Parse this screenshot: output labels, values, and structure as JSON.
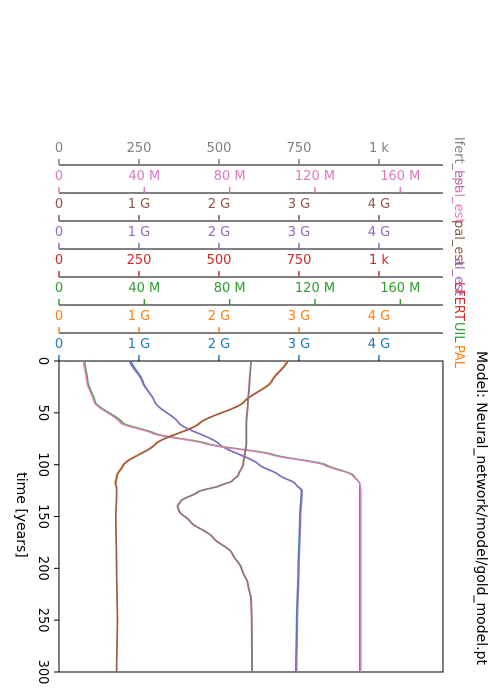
{
  "chart_data": {
    "type": "line",
    "orientation": "vertical-time",
    "title": "Model: Neural_network/model/gold_model.pt",
    "ylabel": "time [years]",
    "ylim": [
      0,
      300
    ],
    "y_ticks": [
      "0",
      "50",
      "100",
      "150",
      "200",
      "250",
      "300"
    ],
    "axes": [
      {
        "name": "lfert_est",
        "color": "#7f7f7f",
        "max": 1200,
        "ticks": [
          "0",
          "250",
          "500",
          "750",
          "1 k"
        ]
      },
      {
        "name": "Lpal_est",
        "color": "#e377c2",
        "max": 180000000,
        "ticks": [
          "0",
          "40 M",
          "80 M",
          "120 M",
          "160 M"
        ]
      },
      {
        "name": "pal_est",
        "color": "#8c564b",
        "max": 4800000000,
        "ticks": [
          "0",
          "1 G",
          "2 G",
          "3 G",
          "4 G"
        ]
      },
      {
        "name": "al_est",
        "color": "#9467bd",
        "max": 4800000000,
        "ticks": [
          "0",
          "1 G",
          "2 G",
          "3 G",
          "4 G"
        ]
      },
      {
        "name": "LFERT",
        "color": "#d62728",
        "max": 1200,
        "ticks": [
          "0",
          "250",
          "500",
          "750",
          "1 k"
        ]
      },
      {
        "name": "UIL",
        "color": "#2ca02c",
        "max": 180000000,
        "ticks": [
          "0",
          "40 M",
          "80 M",
          "120 M",
          "160 M"
        ]
      },
      {
        "name": "PAL",
        "color": "#ff7f0e",
        "max": 4800000000,
        "ticks": [
          "0",
          "1 G",
          "2 G",
          "3 G",
          "4 G"
        ]
      },
      {
        "name": "AL",
        "color": "#1f77b4",
        "max": 4800000000,
        "ticks": [
          "0",
          "1 G",
          "2 G",
          "3 G",
          "4 G"
        ]
      }
    ],
    "series": [
      {
        "name": "AL",
        "color": "#1f77b4",
        "max": 4800000000,
        "t": [
          0,
          20,
          40,
          60,
          80,
          100,
          110,
          118,
          125,
          150,
          200,
          250,
          300
        ],
        "v": [
          900000000.0,
          1050000000.0,
          1200000000.0,
          1500000000.0,
          2000000000.0,
          2500000000.0,
          2750000000.0,
          2950000000.0,
          3030000000.0,
          3010000000.0,
          2990000000.0,
          2970000000.0,
          2960000000.0
        ]
      },
      {
        "name": "al_est",
        "color": "#9467bd",
        "max": 4800000000,
        "t": [
          0,
          20,
          40,
          60,
          80,
          100,
          110,
          118,
          125,
          150,
          200,
          250,
          300
        ],
        "v": [
          880000000.0,
          1040000000.0,
          1200000000.0,
          1500000000.0,
          2000000000.0,
          2500000000.0,
          2750000000.0,
          2950000000.0,
          3040000000.0,
          3020000000.0,
          3000000000.0,
          2980000000.0,
          2970000000.0
        ]
      },
      {
        "name": "UIL",
        "color": "#2ca02c",
        "max": 180000000,
        "t": [
          0,
          20,
          40,
          60,
          70,
          80,
          90,
          100,
          110,
          118,
          125,
          150,
          200,
          250,
          300
        ],
        "v": [
          12000000,
          13500000,
          17000000,
          30000000,
          45000000,
          70000000,
          100000000,
          125000000,
          138000000,
          141000000,
          141000000,
          141000000,
          141000000,
          141000000,
          141000000
        ]
      },
      {
        "name": "Lpal_est",
        "color": "#e377c2",
        "max": 180000000,
        "t": [
          0,
          20,
          40,
          60,
          70,
          80,
          90,
          100,
          110,
          118,
          125,
          150,
          200,
          250,
          300
        ],
        "v": [
          11500000,
          13000000,
          16500000,
          29000000,
          44000000,
          69000000,
          99000000,
          124000000,
          137500000,
          141000000,
          141500000,
          141500000,
          141500000,
          141500000,
          141500000
        ]
      },
      {
        "name": "PAL",
        "color": "#ff7f0e",
        "max": 4800000000,
        "t": [
          0,
          20,
          40,
          60,
          80,
          100,
          110,
          118,
          122,
          130,
          150,
          200,
          250,
          300
        ],
        "v": [
          2850000000.0,
          2650000000.0,
          2300000000.0,
          1750000000.0,
          1200000000.0,
          800000000.0,
          720000000.0,
          700000000.0,
          720000000.0,
          720000000.0,
          710000000.0,
          720000000.0,
          730000000.0,
          720000000.0
        ]
      },
      {
        "name": "pal_est",
        "color": "#8c564b",
        "max": 4800000000,
        "t": [
          0,
          20,
          40,
          60,
          80,
          100,
          110,
          118,
          122,
          130,
          150,
          200,
          250,
          300
        ],
        "v": [
          2860000000.0,
          2660000000.0,
          2310000000.0,
          1760000000.0,
          1210000000.0,
          810000000.0,
          730000000.0,
          710000000.0,
          720000000.0,
          720000000.0,
          710000000.0,
          720000000.0,
          730000000.0,
          720000000.0
        ]
      },
      {
        "name": "LFERT",
        "color": "#d62728",
        "max": 1200,
        "t": [
          0,
          20,
          40,
          60,
          80,
          100,
          110,
          116,
          120,
          126,
          135,
          140,
          145,
          155,
          170,
          185,
          200,
          215,
          230,
          250,
          300
        ],
        "v": [
          600,
          595,
          590,
          585,
          585,
          575,
          560,
          540,
          505,
          435,
          380,
          370,
          375,
          410,
          480,
          540,
          570,
          590,
          600,
          602,
          603
        ]
      },
      {
        "name": "lfert_est",
        "color": "#7f7f7f",
        "max": 1200,
        "t": [
          0,
          20,
          40,
          60,
          80,
          100,
          110,
          116,
          120,
          126,
          135,
          140,
          145,
          155,
          170,
          185,
          200,
          215,
          230,
          250,
          300
        ],
        "v": [
          600,
          596,
          591,
          586,
          586,
          576,
          561,
          541,
          506,
          436,
          381,
          371,
          376,
          411,
          481,
          541,
          571,
          591,
          601,
          603,
          604
        ]
      }
    ]
  }
}
